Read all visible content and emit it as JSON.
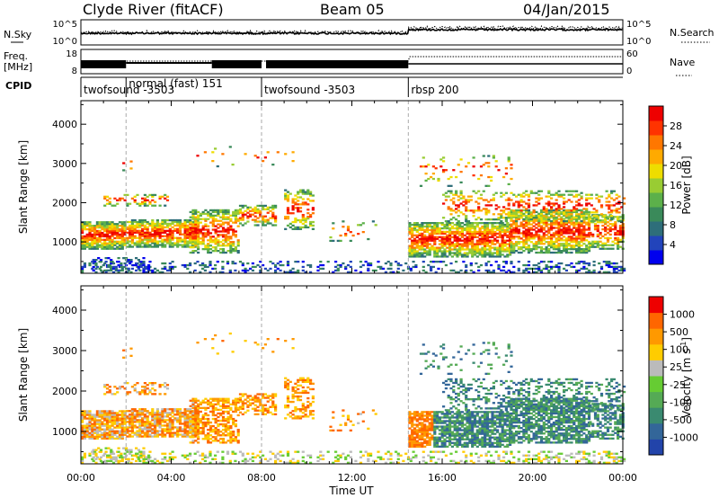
{
  "header": {
    "title": "Clyde River (fitACF)",
    "beam": "Beam 05",
    "date": "04/Jan/2015"
  },
  "top_panels": {
    "nsky_label": "N.Sky",
    "nsearch_label": "N.Search",
    "nsky_ticks": [
      "10^5",
      "10^0"
    ],
    "nsearch_ticks": [
      "10^5",
      "10^0"
    ],
    "freq_label": "Freq.",
    "freq_unit": "[MHz]",
    "freq_ticks": [
      "18",
      "8"
    ],
    "nave_label": "Nave",
    "nave_ticks": [
      "60",
      "0"
    ],
    "cpid_label": "CPID",
    "cpid_segments": [
      {
        "label": "twofsound -3503",
        "start_hour": 0.0
      },
      {
        "label": "normal (fast) 151",
        "start_hour": 2.0
      },
      {
        "label": "twofsound -3503",
        "start_hour": 8.0
      },
      {
        "label": "rbsp 200",
        "start_hour": 14.5
      }
    ]
  },
  "chart_data": [
    {
      "type": "heatmap",
      "title": "",
      "ylabel": "Slant Range [km]",
      "xlabel": "Time UT",
      "xlim": [
        0,
        24
      ],
      "ylim": [
        200,
        4600
      ],
      "yticks": [
        "1000",
        "2000",
        "3000",
        "4000"
      ],
      "xticks": [
        "00:00",
        "04:00",
        "08:00",
        "12:00",
        "16:00",
        "20:00",
        "00:00"
      ],
      "colorbar": {
        "label": "Power [dB]",
        "ticks": [
          "28",
          "24",
          "20",
          "16",
          "12",
          "8",
          "4"
        ],
        "range": [
          0,
          30
        ],
        "colors": [
          "#0000ee",
          "#2244bb",
          "#2e6e7a",
          "#3a8a5a",
          "#5cb04a",
          "#99cc33",
          "#eedd00",
          "#ffaa00",
          "#ff7700",
          "#ff3300",
          "#ee0000"
        ]
      },
      "markers_hour": [
        2.0,
        8.0,
        14.5
      ]
    },
    {
      "type": "heatmap",
      "title": "",
      "ylabel": "Slant Range [km]",
      "xlabel": "Time UT",
      "xlim": [
        0,
        24
      ],
      "ylim": [
        200,
        4600
      ],
      "yticks": [
        "1000",
        "2000",
        "3000",
        "4000"
      ],
      "xticks": [
        "00:00",
        "04:00",
        "08:00",
        "12:00",
        "16:00",
        "20:00",
        "00:00"
      ],
      "colorbar": {
        "label": "Velocity",
        "unit": "[m s",
        "unit_sup": "-1",
        "unit_close": "]",
        "ticks": [
          "1000",
          "500",
          "100",
          "25",
          "-25",
          "-100",
          "-500",
          "-1000"
        ],
        "range": [
          -1000,
          1000
        ],
        "colors": [
          "#2244aa",
          "#336699",
          "#3a8a70",
          "#55aa55",
          "#66cc33",
          "#bbbbbb",
          "#ffcc00",
          "#ff9900",
          "#ff6600",
          "#ee0000"
        ]
      },
      "markers_hour": [
        2.0,
        8.0,
        14.5
      ]
    }
  ]
}
